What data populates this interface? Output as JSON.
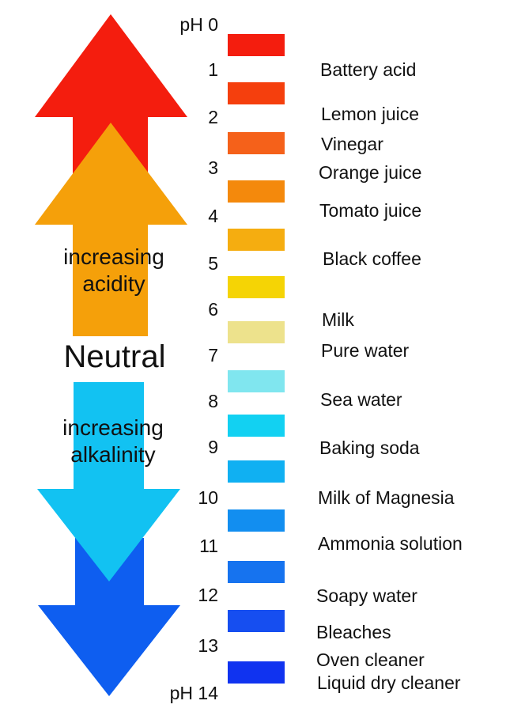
{
  "labels": {
    "acidity_line1": "increasing",
    "acidity_line2": "acidity",
    "neutral": "Neutral",
    "alkalinity_line1": "increasing",
    "alkalinity_line2": "alkalinity"
  },
  "colors": {
    "arrow_red": "#f41d0e",
    "arrow_orange": "#f5a00a",
    "arrow_light_blue": "#12c2f2",
    "arrow_dark_blue": "#0e5ef0"
  },
  "scale": [
    {
      "tick": "pH 0",
      "color": "#f41d0e"
    },
    {
      "tick": "1",
      "color": "#f53f0d"
    },
    {
      "tick": "2",
      "color": "#f5611a"
    },
    {
      "tick": "3",
      "color": "#f4890c"
    },
    {
      "tick": "4",
      "color": "#f5ad10"
    },
    {
      "tick": "5",
      "color": "#f5d405"
    },
    {
      "tick": "6",
      "color": "#ede28c"
    },
    {
      "tick": "7",
      "color": "#80e6ef"
    },
    {
      "tick": "8",
      "color": "#12d1f2"
    },
    {
      "tick": "9",
      "color": "#10b0f2"
    },
    {
      "tick": "10",
      "color": "#128ef0"
    },
    {
      "tick": "11",
      "color": "#1673ef"
    },
    {
      "tick": "12",
      "color": "#164ef0"
    },
    {
      "tick": "13",
      "color": "#1033f0"
    },
    {
      "tick": "pH 14",
      "color": ""
    }
  ],
  "substances": [
    "Battery acid",
    "Lemon juice",
    "Vinegar",
    "Orange juice",
    "Tomato juice",
    "Black coffee",
    "Milk",
    "Pure water",
    "Sea water",
    "Baking soda",
    "Milk of Magnesia",
    "Ammonia solution",
    "Soapy water",
    "Bleaches",
    "Oven cleaner",
    "Liquid dry cleaner"
  ]
}
